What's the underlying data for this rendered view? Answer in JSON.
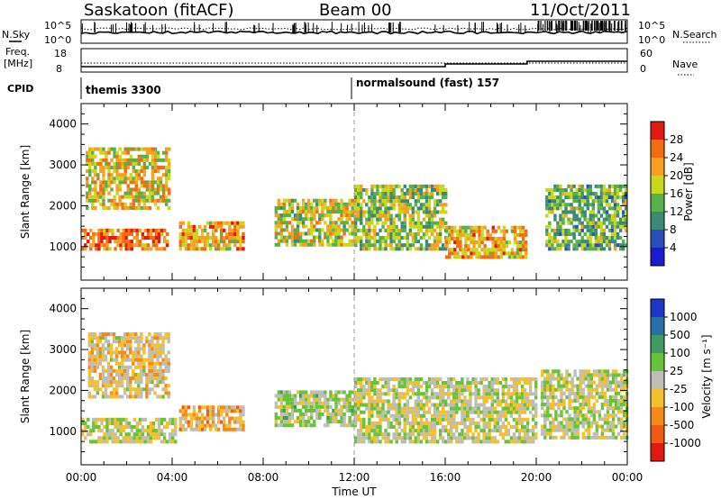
{
  "header": {
    "station": "Saskatoon (fitACF)",
    "beam": "Beam 00",
    "date": "11/Oct/2011"
  },
  "summary_panels": {
    "nsky_label": "N.Sky",
    "nsky_ticks": [
      "10^5",
      "10^0"
    ],
    "nsearch_label": "N.Search",
    "nsearch_ticks": [
      "10^5",
      "10^0"
    ],
    "freq_label_1": "Freq.",
    "freq_label_2": "[MHz]",
    "freq_ticks": [
      "18",
      "8"
    ],
    "nave_label": "Nave",
    "nave_ticks": [
      "60",
      "0"
    ],
    "cpid_label": "CPID",
    "cpid_1": "themis 3300",
    "cpid_2": "normalsound (fast) 157"
  },
  "axes": {
    "ylabel": "Slant Range [km]",
    "xlabel": "Time UT",
    "y_ticks": [
      "1000",
      "2000",
      "3000",
      "4000"
    ],
    "x_ticks": [
      "00:00",
      "04:00",
      "08:00",
      "12:00",
      "16:00",
      "20:00",
      "00:00"
    ]
  },
  "power_colorbar": {
    "label": "Power [dB]",
    "ticks": [
      "4",
      "8",
      "12",
      "16",
      "20",
      "24",
      "28"
    ],
    "colors": [
      "#1b1bd4",
      "#2a4fb8",
      "#3b8a78",
      "#58b04a",
      "#c8d81c",
      "#f5a020",
      "#f56b12",
      "#e01a10"
    ]
  },
  "velocity_colorbar": {
    "label": "Velocity [m s⁻¹]",
    "ticks": [
      "1000",
      "500",
      "100",
      "25",
      "-25",
      "-100",
      "-500",
      "-1000"
    ],
    "colors": [
      "#1b36c8",
      "#2a6fa8",
      "#3f9a62",
      "#66c33a",
      "#bebdb6",
      "#f5c02a",
      "#f58a1a",
      "#f05a12",
      "#e01a10"
    ]
  },
  "chart_data": [
    {
      "type": "heatmap",
      "title": "Power",
      "x_range": [
        "00:00",
        "00:00"
      ],
      "y_range_km": [
        180,
        4500
      ],
      "value_label": "Power [dB]",
      "value_range": [
        0,
        30
      ],
      "echo_bands": [
        {
          "t_start_h": 0.0,
          "t_end_h": 3.8,
          "r_lo_km": 900,
          "r_hi_km": 1400,
          "power_db": 26
        },
        {
          "t_start_h": 0.2,
          "t_end_h": 3.9,
          "r_lo_km": 1900,
          "r_hi_km": 3400,
          "power_db": 20
        },
        {
          "t_start_h": 4.3,
          "t_end_h": 7.1,
          "r_lo_km": 900,
          "r_hi_km": 1600,
          "power_db": 22
        },
        {
          "t_start_h": 8.5,
          "t_end_h": 12.0,
          "r_lo_km": 1000,
          "r_hi_km": 2100,
          "power_db": 18
        },
        {
          "t_start_h": 12.0,
          "t_end_h": 16.0,
          "r_lo_km": 900,
          "r_hi_km": 2500,
          "power_db": 16
        },
        {
          "t_start_h": 16.0,
          "t_end_h": 19.6,
          "r_lo_km": 700,
          "r_hi_km": 1500,
          "power_db": 22
        },
        {
          "t_start_h": 20.4,
          "t_end_h": 24.0,
          "r_lo_km": 900,
          "r_hi_km": 2500,
          "power_db": 14
        }
      ]
    },
    {
      "type": "heatmap",
      "title": "Velocity",
      "x_range": [
        "00:00",
        "00:00"
      ],
      "y_range_km": [
        180,
        4500
      ],
      "value_label": "Velocity [m s⁻¹]",
      "value_range": [
        -1000,
        1000
      ],
      "echo_bands": [
        {
          "t_start_h": 0.0,
          "t_end_h": 4.2,
          "r_lo_km": 700,
          "r_hi_km": 1300,
          "velocity_ms": 0
        },
        {
          "t_start_h": 0.3,
          "t_end_h": 3.9,
          "r_lo_km": 1800,
          "r_hi_km": 3400,
          "velocity_ms": -150
        },
        {
          "t_start_h": 4.3,
          "t_end_h": 7.1,
          "r_lo_km": 1000,
          "r_hi_km": 1600,
          "velocity_ms": -300
        },
        {
          "t_start_h": 8.5,
          "t_end_h": 12.0,
          "r_lo_km": 1100,
          "r_hi_km": 2000,
          "velocity_ms": 60
        },
        {
          "t_start_h": 12.0,
          "t_end_h": 20.0,
          "r_lo_km": 700,
          "r_hi_km": 2300,
          "velocity_ms": 0
        },
        {
          "t_start_h": 20.2,
          "t_end_h": 24.0,
          "r_lo_km": 800,
          "r_hi_km": 2500,
          "velocity_ms": 0
        }
      ]
    }
  ]
}
